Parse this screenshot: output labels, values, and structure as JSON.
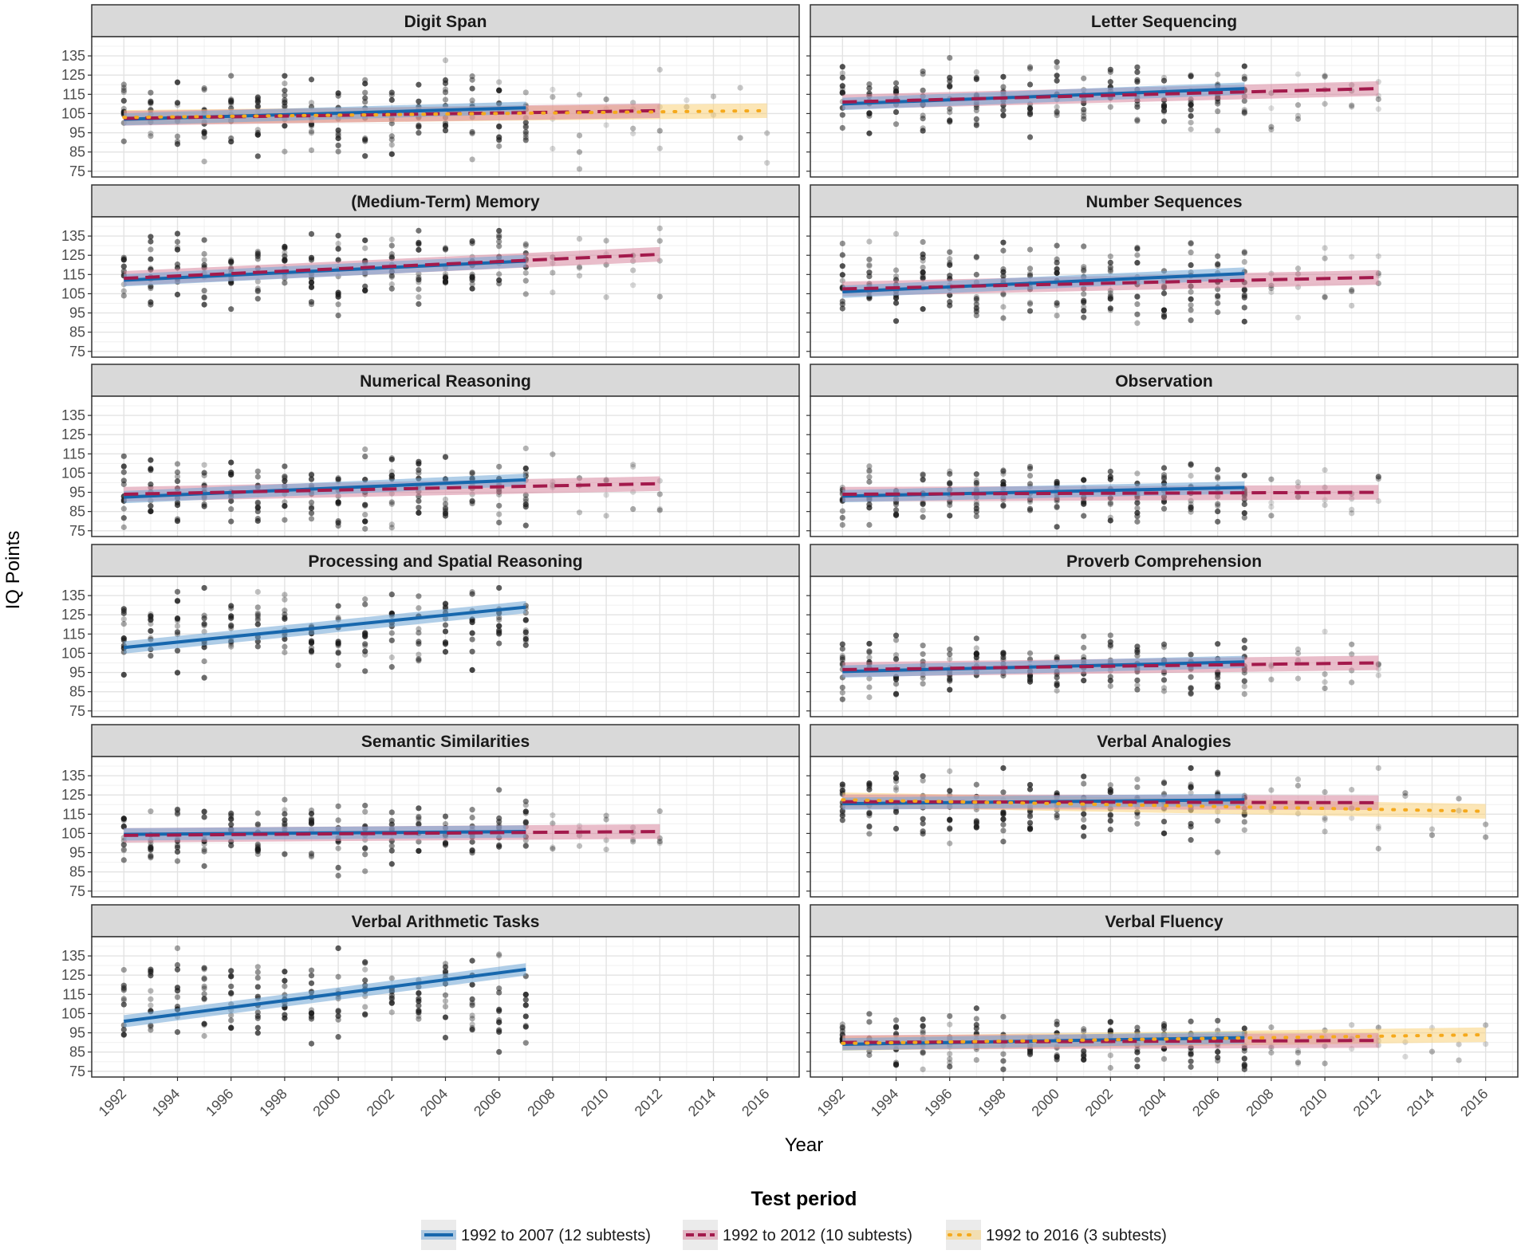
{
  "chart_data": {
    "type": "scatter",
    "description_axis": {
      "xlabel": "Year",
      "ylabel": "IQ Points",
      "xlim": [
        1990.8,
        2017.2
      ],
      "ylim": [
        72,
        145
      ],
      "x_ticks": [
        1992,
        1994,
        1996,
        1998,
        2000,
        2002,
        2004,
        2006,
        2008,
        2010,
        2012,
        2014,
        2016
      ],
      "y_ticks": [
        75,
        85,
        95,
        105,
        115,
        125,
        135
      ]
    },
    "legend": {
      "title": "Test period",
      "position": "bottom",
      "entries": [
        {
          "key": "p2007",
          "label": "1992 to 2007 (12 subtests)",
          "color": "#1767ad",
          "linestyle": "solid"
        },
        {
          "key": "p2012",
          "label": "1992 to 2012 (10 subtests)",
          "color": "#a31a4c",
          "linestyle": "dashed"
        },
        {
          "key": "p2016",
          "label": "1992 to 2016 (3 subtests)",
          "color": "#f5a91c",
          "linestyle": "dotted"
        }
      ]
    },
    "band_colors": {
      "p2007": "#6fa6d6",
      "p2012": "#d7869f",
      "p2016": "#f9d27a"
    },
    "panels": [
      {
        "title": "Digit Span",
        "lines": [
          {
            "period": "p2007",
            "x": [
              1992,
              2007
            ],
            "y": [
              102,
              108
            ]
          },
          {
            "period": "p2012",
            "x": [
              1992,
              2012
            ],
            "y": [
              102.5,
              106.5
            ]
          },
          {
            "period": "p2016",
            "x": [
              1992,
              2016
            ],
            "y": [
              103,
              106.5
            ]
          }
        ],
        "points": {
          "x_end": 2016,
          "center": 104,
          "spread": 13
        }
      },
      {
        "title": "Letter Sequencing",
        "lines": [
          {
            "period": "p2007",
            "x": [
              1992,
              2007
            ],
            "y": [
              110,
              118
            ]
          },
          {
            "period": "p2012",
            "x": [
              1992,
              2012
            ],
            "y": [
              111,
              118
            ]
          }
        ],
        "points": {
          "x_end": 2012,
          "center": 113,
          "spread": 10
        }
      },
      {
        "title": "(Medium-Term) Memory",
        "lines": [
          {
            "period": "p2007",
            "x": [
              1992,
              2007
            ],
            "y": [
              112,
              122
            ]
          },
          {
            "period": "p2012",
            "x": [
              1992,
              2012
            ],
            "y": [
              113,
              125.5
            ]
          }
        ],
        "points": {
          "x_end": 2012,
          "center": 117,
          "spread": 12
        }
      },
      {
        "title": "Number Sequences",
        "lines": [
          {
            "period": "p2007",
            "x": [
              1992,
              2007
            ],
            "y": [
              106,
              115.5
            ]
          },
          {
            "period": "p2012",
            "x": [
              1992,
              2012
            ],
            "y": [
              107.5,
              113.5
            ]
          }
        ],
        "points": {
          "x_end": 2012,
          "center": 110,
          "spread": 13
        }
      },
      {
        "title": "Numerical Reasoning",
        "lines": [
          {
            "period": "p2007",
            "x": [
              1992,
              2007
            ],
            "y": [
              92.5,
              101.5
            ]
          },
          {
            "period": "p2012",
            "x": [
              1992,
              2012
            ],
            "y": [
              94,
              99.5
            ]
          }
        ],
        "points": {
          "x_end": 2012,
          "center": 96,
          "spread": 11
        }
      },
      {
        "title": "Observation",
        "lines": [
          {
            "period": "p2007",
            "x": [
              1992,
              2007
            ],
            "y": [
              93,
              97.5
            ]
          },
          {
            "period": "p2012",
            "x": [
              1992,
              2012
            ],
            "y": [
              94,
              95
            ]
          }
        ],
        "points": {
          "x_end": 2012,
          "center": 94,
          "spread": 10
        }
      },
      {
        "title": "Processing and Spatial Reasoning",
        "lines": [
          {
            "period": "p2007",
            "x": [
              1992,
              2007
            ],
            "y": [
              108,
              129
            ]
          }
        ],
        "points": {
          "x_end": 2007,
          "center": 118,
          "spread": 12
        }
      },
      {
        "title": "Proverb Comprehension",
        "lines": [
          {
            "period": "p2007",
            "x": [
              1992,
              2007
            ],
            "y": [
              95.5,
              100.5
            ]
          },
          {
            "period": "p2012",
            "x": [
              1992,
              2012
            ],
            "y": [
              96.5,
              100
            ]
          }
        ],
        "points": {
          "x_end": 2012,
          "center": 98,
          "spread": 9
        }
      },
      {
        "title": "Semantic Similarities",
        "lines": [
          {
            "period": "p2007",
            "x": [
              1992,
              2007
            ],
            "y": [
              104.5,
              106
            ]
          },
          {
            "period": "p2012",
            "x": [
              1992,
              2012
            ],
            "y": [
              104,
              106
            ]
          }
        ],
        "points": {
          "x_end": 2012,
          "center": 105,
          "spread": 10
        }
      },
      {
        "title": "Verbal Analogies",
        "lines": [
          {
            "period": "p2007",
            "x": [
              1992,
              2007
            ],
            "y": [
              120.5,
              122.5
            ]
          },
          {
            "period": "p2012",
            "x": [
              1992,
              2012
            ],
            "y": [
              121.5,
              121
            ]
          },
          {
            "period": "p2016",
            "x": [
              1992,
              2016
            ],
            "y": [
              122.5,
              116.5
            ]
          }
        ],
        "points": {
          "x_end": 2016,
          "center": 119,
          "spread": 11
        }
      },
      {
        "title": "Verbal Arithmetic Tasks",
        "lines": [
          {
            "period": "p2007",
            "x": [
              1992,
              2007
            ],
            "y": [
              101,
              128
            ]
          }
        ],
        "points": {
          "x_end": 2007,
          "center": 114,
          "spread": 14
        }
      },
      {
        "title": "Verbal Fluency",
        "lines": [
          {
            "period": "p2007",
            "x": [
              1992,
              2007
            ],
            "y": [
              89,
              92.5
            ]
          },
          {
            "period": "p2012",
            "x": [
              1992,
              2012
            ],
            "y": [
              90,
              91
            ]
          },
          {
            "period": "p2016",
            "x": [
              1992,
              2016
            ],
            "y": [
              89.5,
              94
            ]
          }
        ],
        "points": {
          "x_end": 2016,
          "center": 90,
          "spread": 9
        }
      }
    ]
  }
}
